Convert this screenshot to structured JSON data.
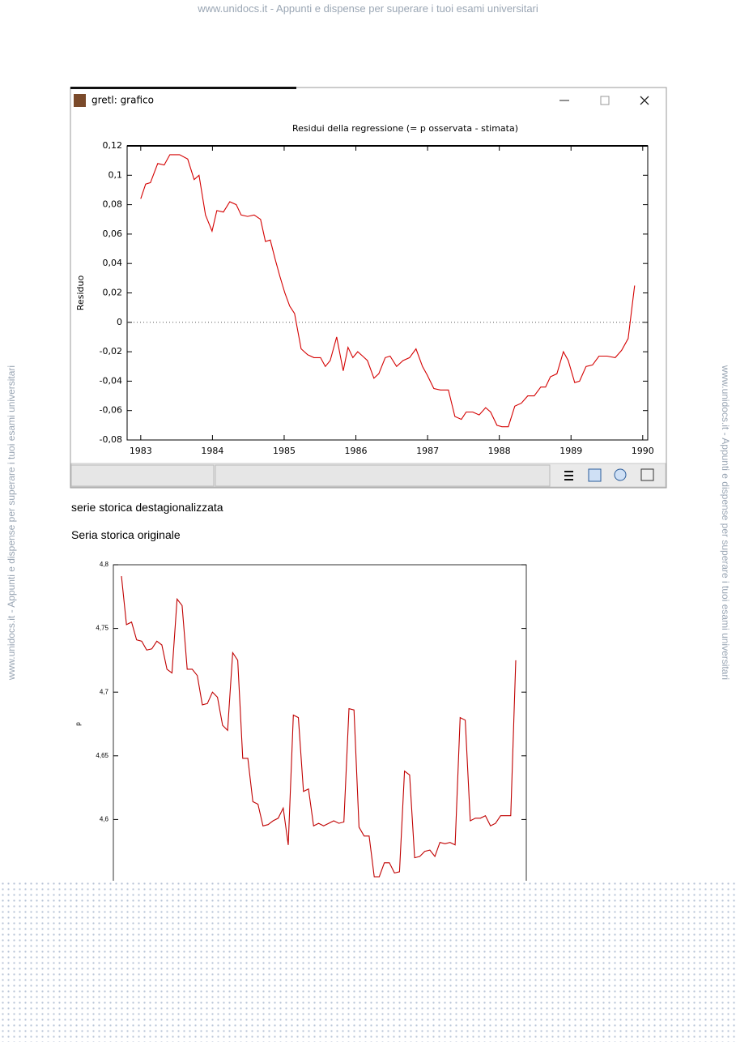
{
  "header": {
    "watermark": "www.unidocs.it - Appunti e dispense per superare i tuoi esami universitari"
  },
  "window": {
    "title": "gretl: grafico"
  },
  "captions": [
    "serie storica destagionalizzata",
    "Seria storica originale"
  ],
  "chart_data": [
    {
      "type": "line",
      "title": "Residui della regressione (= p osservata - stimata)",
      "y_label": "Residuo",
      "color": "#d40000",
      "xlim": [
        1982.81,
        1990.07
      ],
      "xticks": [
        1983,
        1984,
        1985,
        1986,
        1987,
        1988,
        1989,
        1990
      ],
      "ylim": [
        -0.08,
        0.12
      ],
      "yticks": [
        {
          "value": -0.08,
          "label": "-0,08"
        },
        {
          "value": -0.06,
          "label": "-0,06"
        },
        {
          "value": -0.04,
          "label": "-0,04"
        },
        {
          "value": -0.02,
          "label": "-0,02"
        },
        0,
        {
          "value": 0.02,
          "label": "0,02"
        },
        {
          "value": 0.04,
          "label": "0,04"
        },
        {
          "value": 0.06,
          "label": "0,06"
        },
        {
          "value": 0.08,
          "label": "0,08"
        },
        {
          "value": 0.1,
          "label": "0,1"
        },
        {
          "value": 0.12,
          "label": "0,12"
        }
      ],
      "zero_line": true,
      "x": [
        1983.0,
        1983.068,
        1983.135,
        1983.237,
        1983.327,
        1983.406,
        1983.542,
        1983.655,
        1983.745,
        1983.813,
        1983.903,
        1983.994,
        1984.061,
        1984.152,
        1984.242,
        1984.332,
        1984.4,
        1984.49,
        1984.581,
        1984.671,
        1984.739,
        1984.806,
        1984.874,
        1984.942,
        1985.01,
        1985.077,
        1985.145,
        1985.236,
        1985.326,
        1985.416,
        1985.507,
        1985.574,
        1985.642,
        1985.732,
        1985.823,
        1985.89,
        1985.958,
        1986.026,
        1986.094,
        1986.161,
        1986.252,
        1986.319,
        1986.41,
        1986.477,
        1986.568,
        1986.658,
        1986.748,
        1986.839,
        1986.929,
        1986.997,
        1987.087,
        1987.178,
        1987.29,
        1987.381,
        1987.471,
        1987.539,
        1987.629,
        1987.719,
        1987.81,
        1987.878,
        1987.968,
        1988.036,
        1988.126,
        1988.216,
        1988.307,
        1988.397,
        1988.487,
        1988.578,
        1988.645,
        1988.713,
        1988.803,
        1988.894,
        1988.961,
        1989.052,
        1989.119,
        1989.21,
        1989.3,
        1989.39,
        1989.503,
        1989.616,
        1989.706,
        1989.797,
        1989.887
      ],
      "values": [
        0.084,
        0.094,
        0.095,
        0.108,
        0.107,
        0.114,
        0.114,
        0.111,
        0.097,
        0.1,
        0.073,
        0.062,
        0.076,
        0.075,
        0.082,
        0.08,
        0.073,
        0.072,
        0.073,
        0.07,
        0.055,
        0.056,
        0.043,
        0.031,
        0.02,
        0.011,
        0.006,
        -0.018,
        -0.022,
        -0.024,
        -0.024,
        -0.03,
        -0.026,
        -0.01,
        -0.033,
        -0.017,
        -0.024,
        -0.02,
        -0.023,
        -0.026,
        -0.038,
        -0.035,
        -0.024,
        -0.023,
        -0.03,
        -0.026,
        -0.024,
        -0.018,
        -0.03,
        -0.036,
        -0.045,
        -0.046,
        -0.046,
        -0.064,
        -0.066,
        -0.061,
        -0.061,
        -0.063,
        -0.058,
        -0.061,
        -0.07,
        -0.071,
        -0.071,
        -0.057,
        -0.055,
        -0.05,
        -0.05,
        -0.044,
        -0.044,
        -0.037,
        -0.035,
        -0.02,
        -0.026,
        -0.041,
        -0.04,
        -0.03,
        -0.029,
        -0.023,
        -0.023,
        -0.024,
        -0.019,
        -0.011,
        0.025
      ]
    },
    {
      "type": "line",
      "y_label": "p",
      "color": "#c00000",
      "ylim": [
        4.55,
        4.8
      ],
      "yticks": [
        {
          "value": 4.6,
          "label": "4,6"
        },
        {
          "value": 4.65,
          "label": "4,65"
        },
        {
          "value": 4.7,
          "label": "4,7"
        },
        {
          "value": 4.75,
          "label": "4,75"
        },
        {
          "value": 4.8,
          "label": "4,8"
        }
      ],
      "values": [
        4.791,
        4.753,
        4.755,
        4.741,
        4.74,
        4.733,
        4.734,
        4.74,
        4.737,
        4.718,
        4.715,
        4.773,
        4.768,
        4.718,
        4.718,
        4.713,
        4.69,
        4.691,
        4.7,
        4.696,
        4.674,
        4.67,
        4.731,
        4.725,
        4.648,
        4.648,
        4.614,
        4.612,
        4.595,
        4.596,
        4.599,
        4.601,
        4.609,
        4.58,
        4.682,
        4.68,
        4.622,
        4.624,
        4.595,
        4.597,
        4.595,
        4.597,
        4.599,
        4.597,
        4.598,
        4.687,
        4.686,
        4.594,
        4.587,
        4.587,
        4.555,
        4.555,
        4.566,
        4.566,
        4.558,
        4.559,
        4.638,
        4.635,
        4.57,
        4.571,
        4.575,
        4.576,
        4.571,
        4.582,
        4.581,
        4.582,
        4.58,
        4.68,
        4.678,
        4.599,
        4.601,
        4.601,
        4.603,
        4.595,
        4.597,
        4.603,
        4.603,
        4.603,
        4.725
      ]
    }
  ]
}
